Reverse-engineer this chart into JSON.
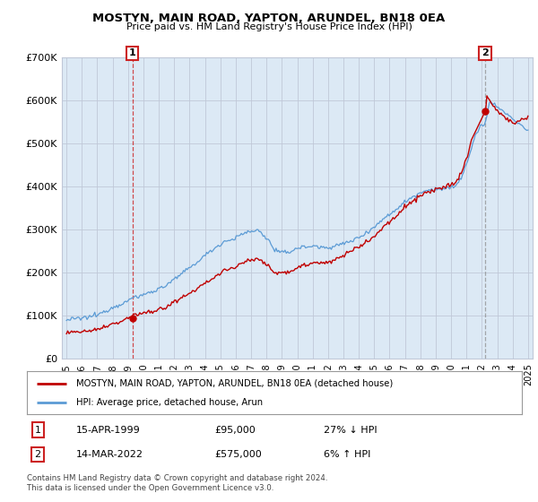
{
  "title": "MOSTYN, MAIN ROAD, YAPTON, ARUNDEL, BN18 0EA",
  "subtitle": "Price paid vs. HM Land Registry's House Price Index (HPI)",
  "ylim": [
    0,
    700000
  ],
  "yticks": [
    0,
    100000,
    200000,
    300000,
    400000,
    500000,
    600000,
    700000
  ],
  "ytick_labels": [
    "£0",
    "£100K",
    "£200K",
    "£300K",
    "£400K",
    "£500K",
    "£600K",
    "£700K"
  ],
  "sale1_date": 1999.29,
  "sale1_price": 95000,
  "sale1_label": "1",
  "sale2_date": 2022.21,
  "sale2_price": 575000,
  "sale2_label": "2",
  "line_color_hpi": "#5b9bd5",
  "line_color_price": "#c00000",
  "chart_bg": "#dce9f5",
  "legend_line1": "MOSTYN, MAIN ROAD, YAPTON, ARUNDEL, BN18 0EA (detached house)",
  "legend_line2": "HPI: Average price, detached house, Arun",
  "table_row1": [
    "1",
    "15-APR-1999",
    "£95,000",
    "27% ↓ HPI"
  ],
  "table_row2": [
    "2",
    "14-MAR-2022",
    "£575,000",
    "6% ↑ HPI"
  ],
  "footer": "Contains HM Land Registry data © Crown copyright and database right 2024.\nThis data is licensed under the Open Government Licence v3.0.",
  "background_color": "#ffffff",
  "grid_color": "#c0c8d8"
}
